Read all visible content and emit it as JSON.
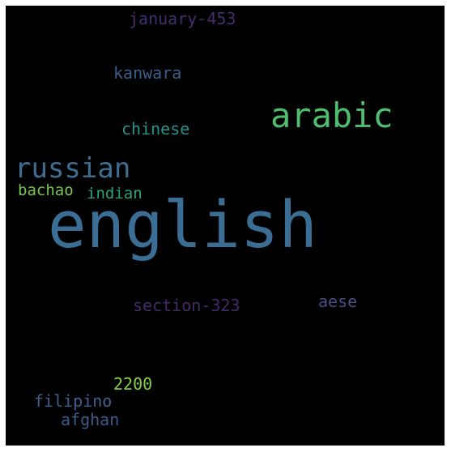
{
  "words": [
    {
      "text": "english",
      "color": "#3b6e94"
    },
    {
      "text": "arabic",
      "color": "#4fbf6f"
    },
    {
      "text": "russian",
      "color": "#3f6e93"
    },
    {
      "text": "chinese",
      "color": "#25938a"
    },
    {
      "text": "kanwara",
      "color": "#3b5f8c"
    },
    {
      "text": "january-453",
      "color": "#462c6e"
    },
    {
      "text": "bachao",
      "color": "#74c653"
    },
    {
      "text": "indian",
      "color": "#2aa47a"
    },
    {
      "text": "section-323",
      "color": "#442a68"
    },
    {
      "text": "aese",
      "color": "#4a4a84"
    },
    {
      "text": "2200",
      "color": "#86d04d"
    },
    {
      "text": "filipino",
      "color": "#3c6290"
    },
    {
      "text": "afghan",
      "color": "#3b5a8a"
    }
  ]
}
